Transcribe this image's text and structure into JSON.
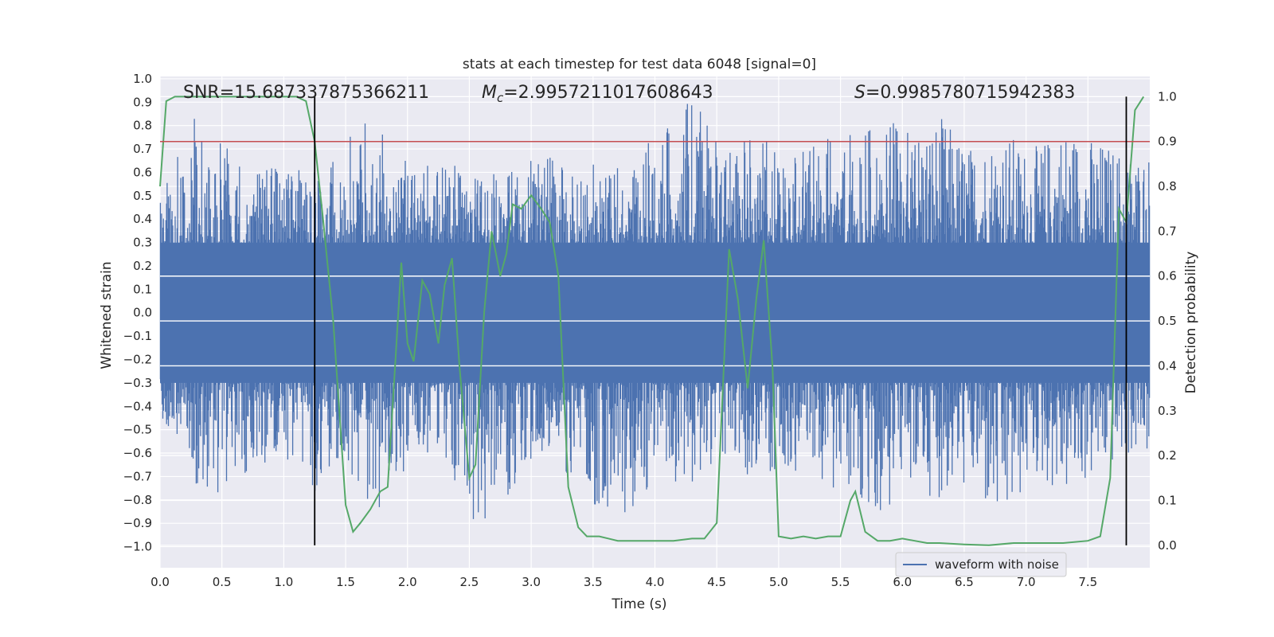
{
  "chart_data": {
    "type": "line",
    "title": "stats at each timestep for test data 6048 [signal=0]",
    "xlabel": "Time (s)",
    "ylabel_left": "Whitened strain",
    "ylabel_right": "Detection probability",
    "xlim": [
      0,
      8
    ],
    "ylim_left": [
      -1.09,
      1.01
    ],
    "ylim_right": [
      -0.05,
      1.045
    ],
    "x_ticks": [
      "0.0",
      "0.5",
      "1.0",
      "1.5",
      "2.0",
      "2.5",
      "3.0",
      "3.5",
      "4.0",
      "4.5",
      "5.0",
      "5.5",
      "6.0",
      "6.5",
      "7.0",
      "7.5"
    ],
    "y_ticks_left": [
      "1.0",
      "0.9",
      "0.8",
      "0.7",
      "0.6",
      "0.5",
      "0.4",
      "0.3",
      "0.2",
      "0.1",
      "0.0",
      "-0.1",
      "-0.2",
      "-0.3",
      "-0.4",
      "-0.5",
      "-0.6",
      "-0.7",
      "-0.8",
      "-0.9",
      "-1.0"
    ],
    "y_ticks_right": [
      "1.0",
      "0.9",
      "0.8",
      "0.7",
      "0.6",
      "0.5",
      "0.4",
      "0.3",
      "0.2",
      "0.1",
      "0.0"
    ],
    "annotations": {
      "snr": "SNR=15.687337875366211",
      "mc_symbol": "M",
      "mc_sub": "c",
      "mc_value": "=2.9957211017608643",
      "s_symbol": "S",
      "s_value": "=0.9985780715942383"
    },
    "legend": {
      "label": "waveform with noise",
      "position": "lower right"
    },
    "threshold_line": {
      "axis": "right",
      "y": 0.9,
      "color": "#c44e52"
    },
    "vertical_lines": {
      "x": [
        1.25,
        7.81
      ],
      "color": "#000000"
    },
    "grid": true,
    "colors": {
      "waveform": "#4c72b0",
      "probability": "#55a868",
      "background": "#eaeaf2"
    },
    "series": [
      {
        "name": "waveform with noise",
        "axis": "left",
        "note_envelope": "dense noise, approx amplitude between -0.45 and 0.5 with spikes",
        "x": [
          0.05,
          0.3,
          0.55,
          0.8,
          1.05,
          1.3,
          1.55,
          1.8,
          2.05,
          2.3,
          2.55,
          2.8,
          3.05,
          3.3,
          3.55,
          3.8,
          4.05,
          4.3,
          4.55,
          4.8,
          5.05,
          5.3,
          5.55,
          5.8,
          6.05,
          6.3,
          6.55,
          6.8,
          7.05,
          7.3,
          7.55,
          7.8
        ],
        "y_max": [
          0.55,
          0.9,
          0.7,
          0.68,
          0.62,
          0.6,
          0.85,
          0.8,
          0.62,
          0.65,
          0.6,
          0.6,
          0.7,
          0.62,
          0.65,
          0.6,
          0.82,
          0.92,
          0.7,
          0.8,
          0.7,
          0.72,
          0.82,
          0.8,
          0.82,
          0.85,
          0.72,
          0.8,
          0.7,
          0.82,
          0.75,
          0.7
        ],
        "y_min": [
          -0.5,
          -0.75,
          -0.8,
          -0.7,
          -0.65,
          -0.8,
          -0.75,
          -0.85,
          -0.6,
          -0.7,
          -0.9,
          -0.88,
          -0.6,
          -0.7,
          -0.85,
          -0.87,
          -0.7,
          -0.75,
          -0.6,
          -0.72,
          -0.65,
          -0.8,
          -0.8,
          -0.92,
          -0.75,
          -0.8,
          -0.75,
          -1.0,
          -0.7,
          -0.8,
          -0.72,
          -0.62
        ]
      },
      {
        "name": "",
        "axis": "right",
        "x": [
          0.0,
          0.05,
          0.12,
          0.25,
          0.5,
          0.75,
          1.0,
          1.1,
          1.18,
          1.25,
          1.32,
          1.4,
          1.5,
          1.56,
          1.62,
          1.7,
          1.78,
          1.84,
          1.9,
          1.95,
          2.0,
          2.05,
          2.12,
          2.18,
          2.25,
          2.3,
          2.36,
          2.42,
          2.5,
          2.55,
          2.62,
          2.68,
          2.75,
          2.8,
          2.85,
          2.92,
          3.0,
          3.08,
          3.15,
          3.22,
          3.3,
          3.38,
          3.45,
          3.55,
          3.7,
          3.85,
          4.0,
          4.15,
          4.3,
          4.4,
          4.5,
          4.6,
          4.67,
          4.75,
          4.82,
          4.88,
          4.95,
          5.0,
          5.1,
          5.2,
          5.3,
          5.4,
          5.5,
          5.58,
          5.62,
          5.7,
          5.8,
          5.9,
          6.0,
          6.1,
          6.2,
          6.3,
          6.5,
          6.7,
          6.9,
          7.1,
          7.3,
          7.5,
          7.6,
          7.68,
          7.75,
          7.81,
          7.88,
          7.95
        ],
        "y": [
          0.8,
          0.99,
          1.0,
          1.0,
          1.0,
          1.0,
          1.0,
          1.0,
          0.99,
          0.9,
          0.72,
          0.5,
          0.09,
          0.03,
          0.05,
          0.08,
          0.12,
          0.13,
          0.4,
          0.63,
          0.45,
          0.41,
          0.59,
          0.56,
          0.45,
          0.58,
          0.64,
          0.4,
          0.15,
          0.18,
          0.52,
          0.7,
          0.6,
          0.65,
          0.76,
          0.75,
          0.78,
          0.75,
          0.72,
          0.6,
          0.13,
          0.04,
          0.02,
          0.02,
          0.01,
          0.01,
          0.01,
          0.01,
          0.015,
          0.015,
          0.05,
          0.66,
          0.55,
          0.35,
          0.55,
          0.68,
          0.4,
          0.02,
          0.015,
          0.02,
          0.015,
          0.02,
          0.02,
          0.1,
          0.12,
          0.03,
          0.01,
          0.01,
          0.015,
          0.01,
          0.005,
          0.005,
          0.002,
          0.0,
          0.005,
          0.005,
          0.005,
          0.01,
          0.02,
          0.15,
          0.75,
          0.72,
          0.97,
          1.0
        ]
      }
    ]
  }
}
